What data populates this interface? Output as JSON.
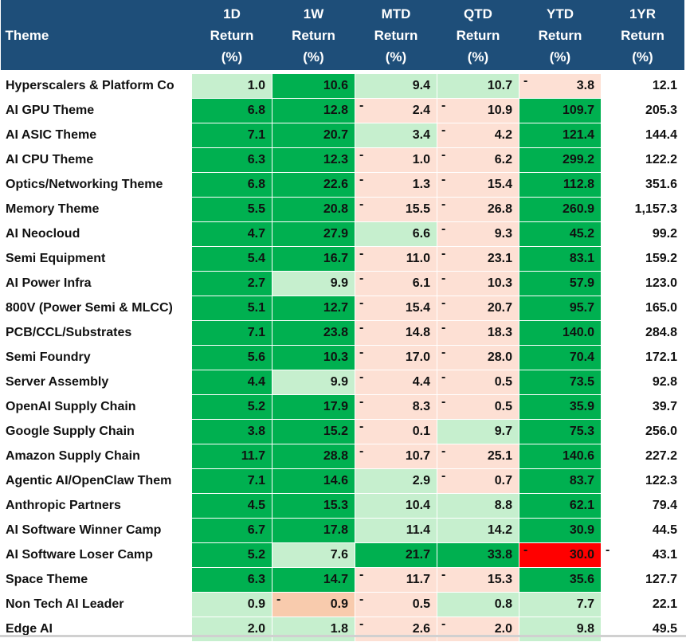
{
  "header": {
    "theme": "Theme",
    "columns": [
      [
        "1D",
        "Return",
        "(%)"
      ],
      [
        "1W",
        "Return",
        "(%)"
      ],
      [
        "MTD",
        "Return",
        "(%)"
      ],
      [
        "QTD",
        "Return",
        "(%)"
      ],
      [
        "YTD",
        "Return",
        "(%)"
      ],
      [
        "1YR",
        "Return",
        "(%)"
      ]
    ]
  },
  "rows": [
    {
      "name": "Hyperscalers & Platform Co",
      "cells": [
        {
          "v": "1.0",
          "c": "lg"
        },
        {
          "v": "10.6",
          "c": "dg"
        },
        {
          "v": "9.4",
          "c": "lg"
        },
        {
          "v": "10.7",
          "c": "lg"
        },
        {
          "v": "3.8",
          "c": "pk",
          "neg": true
        },
        {
          "v": "12.1",
          "c": "wh"
        }
      ]
    },
    {
      "name": "AI GPU Theme",
      "cells": [
        {
          "v": "6.8",
          "c": "dg"
        },
        {
          "v": "12.8",
          "c": "dg"
        },
        {
          "v": "2.4",
          "c": "pk",
          "neg": true
        },
        {
          "v": "10.9",
          "c": "pk",
          "neg": true
        },
        {
          "v": "109.7",
          "c": "dg"
        },
        {
          "v": "205.3",
          "c": "wh"
        }
      ]
    },
    {
      "name": "AI ASIC Theme",
      "cells": [
        {
          "v": "7.1",
          "c": "dg"
        },
        {
          "v": "20.7",
          "c": "dg"
        },
        {
          "v": "3.4",
          "c": "lg"
        },
        {
          "v": "4.2",
          "c": "pk",
          "neg": true
        },
        {
          "v": "121.4",
          "c": "dg"
        },
        {
          "v": "144.4",
          "c": "wh"
        }
      ]
    },
    {
      "name": "AI CPU Theme",
      "cells": [
        {
          "v": "6.3",
          "c": "dg"
        },
        {
          "v": "12.3",
          "c": "dg"
        },
        {
          "v": "1.0",
          "c": "pk",
          "neg": true
        },
        {
          "v": "6.2",
          "c": "pk",
          "neg": true
        },
        {
          "v": "299.2",
          "c": "dg"
        },
        {
          "v": "122.2",
          "c": "wh"
        }
      ]
    },
    {
      "name": "Optics/Networking Theme",
      "cells": [
        {
          "v": "6.8",
          "c": "dg"
        },
        {
          "v": "22.6",
          "c": "dg"
        },
        {
          "v": "1.3",
          "c": "pk",
          "neg": true
        },
        {
          "v": "15.4",
          "c": "pk",
          "neg": true
        },
        {
          "v": "112.8",
          "c": "dg"
        },
        {
          "v": "351.6",
          "c": "wh"
        }
      ]
    },
    {
      "name": "Memory Theme",
      "cells": [
        {
          "v": "5.5",
          "c": "dg"
        },
        {
          "v": "20.8",
          "c": "dg"
        },
        {
          "v": "15.5",
          "c": "pk",
          "neg": true
        },
        {
          "v": "26.8",
          "c": "pk",
          "neg": true
        },
        {
          "v": "260.9",
          "c": "dg"
        },
        {
          "v": "1,157.3",
          "c": "wh"
        }
      ]
    },
    {
      "name": "AI Neocloud",
      "cells": [
        {
          "v": "4.7",
          "c": "dg"
        },
        {
          "v": "27.9",
          "c": "dg"
        },
        {
          "v": "6.6",
          "c": "lg"
        },
        {
          "v": "9.3",
          "c": "pk",
          "neg": true
        },
        {
          "v": "45.2",
          "c": "dg"
        },
        {
          "v": "99.2",
          "c": "wh"
        }
      ]
    },
    {
      "name": "Semi Equipment",
      "cells": [
        {
          "v": "5.4",
          "c": "dg"
        },
        {
          "v": "16.7",
          "c": "dg"
        },
        {
          "v": "11.0",
          "c": "pk",
          "neg": true
        },
        {
          "v": "23.1",
          "c": "pk",
          "neg": true
        },
        {
          "v": "83.1",
          "c": "dg"
        },
        {
          "v": "159.2",
          "c": "wh"
        }
      ]
    },
    {
      "name": "AI Power Infra",
      "cells": [
        {
          "v": "2.7",
          "c": "dg"
        },
        {
          "v": "9.9",
          "c": "lg"
        },
        {
          "v": "6.1",
          "c": "pk",
          "neg": true
        },
        {
          "v": "10.3",
          "c": "pk",
          "neg": true
        },
        {
          "v": "57.9",
          "c": "dg"
        },
        {
          "v": "123.0",
          "c": "wh"
        }
      ]
    },
    {
      "name": "800V (Power Semi & MLCC)",
      "cells": [
        {
          "v": "5.1",
          "c": "dg"
        },
        {
          "v": "12.7",
          "c": "dg"
        },
        {
          "v": "15.4",
          "c": "pk",
          "neg": true
        },
        {
          "v": "20.7",
          "c": "pk",
          "neg": true
        },
        {
          "v": "95.7",
          "c": "dg"
        },
        {
          "v": "165.0",
          "c": "wh"
        }
      ]
    },
    {
      "name": "PCB/CCL/Substrates",
      "cells": [
        {
          "v": "7.1",
          "c": "dg"
        },
        {
          "v": "23.8",
          "c": "dg"
        },
        {
          "v": "14.8",
          "c": "pk",
          "neg": true
        },
        {
          "v": "18.3",
          "c": "pk",
          "neg": true
        },
        {
          "v": "140.0",
          "c": "dg"
        },
        {
          "v": "284.8",
          "c": "wh"
        }
      ]
    },
    {
      "name": "Semi Foundry",
      "cells": [
        {
          "v": "5.6",
          "c": "dg"
        },
        {
          "v": "10.3",
          "c": "dg"
        },
        {
          "v": "17.0",
          "c": "pk",
          "neg": true
        },
        {
          "v": "28.0",
          "c": "pk",
          "neg": true
        },
        {
          "v": "70.4",
          "c": "dg"
        },
        {
          "v": "172.1",
          "c": "wh"
        }
      ]
    },
    {
      "name": "Server Assembly",
      "cells": [
        {
          "v": "4.4",
          "c": "dg"
        },
        {
          "v": "9.9",
          "c": "lg"
        },
        {
          "v": "4.4",
          "c": "pk",
          "neg": true
        },
        {
          "v": "0.5",
          "c": "pk",
          "neg": true
        },
        {
          "v": "73.5",
          "c": "dg"
        },
        {
          "v": "92.8",
          "c": "wh"
        }
      ]
    },
    {
      "name": "OpenAI Supply Chain",
      "cells": [
        {
          "v": "5.2",
          "c": "dg"
        },
        {
          "v": "17.9",
          "c": "dg"
        },
        {
          "v": "8.3",
          "c": "pk",
          "neg": true
        },
        {
          "v": "0.5",
          "c": "pk",
          "neg": true
        },
        {
          "v": "35.9",
          "c": "dg"
        },
        {
          "v": "39.7",
          "c": "wh"
        }
      ]
    },
    {
      "name": "Google Supply Chain",
      "cells": [
        {
          "v": "3.8",
          "c": "dg"
        },
        {
          "v": "15.2",
          "c": "dg"
        },
        {
          "v": "0.1",
          "c": "pk",
          "neg": true
        },
        {
          "v": "9.7",
          "c": "lg"
        },
        {
          "v": "75.3",
          "c": "dg"
        },
        {
          "v": "256.0",
          "c": "wh"
        }
      ]
    },
    {
      "name": "Amazon Supply Chain",
      "cells": [
        {
          "v": "11.7",
          "c": "dg"
        },
        {
          "v": "28.8",
          "c": "dg"
        },
        {
          "v": "10.7",
          "c": "pk",
          "neg": true
        },
        {
          "v": "25.1",
          "c": "pk",
          "neg": true
        },
        {
          "v": "140.6",
          "c": "dg"
        },
        {
          "v": "227.2",
          "c": "wh"
        }
      ]
    },
    {
      "name": "Agentic AI/OpenClaw Them",
      "cells": [
        {
          "v": "7.1",
          "c": "dg"
        },
        {
          "v": "14.6",
          "c": "dg"
        },
        {
          "v": "2.9",
          "c": "lg"
        },
        {
          "v": "0.7",
          "c": "pk",
          "neg": true
        },
        {
          "v": "83.7",
          "c": "dg"
        },
        {
          "v": "122.3",
          "c": "wh"
        }
      ]
    },
    {
      "name": "Anthropic Partners",
      "cells": [
        {
          "v": "4.5",
          "c": "dg"
        },
        {
          "v": "15.3",
          "c": "dg"
        },
        {
          "v": "10.4",
          "c": "lg"
        },
        {
          "v": "8.8",
          "c": "lg"
        },
        {
          "v": "62.1",
          "c": "dg"
        },
        {
          "v": "79.4",
          "c": "wh"
        }
      ]
    },
    {
      "name": "AI Software Winner Camp",
      "cells": [
        {
          "v": "6.7",
          "c": "dg"
        },
        {
          "v": "17.8",
          "c": "dg"
        },
        {
          "v": "11.4",
          "c": "lg"
        },
        {
          "v": "14.2",
          "c": "lg"
        },
        {
          "v": "30.9",
          "c": "dg"
        },
        {
          "v": "44.5",
          "c": "wh"
        }
      ]
    },
    {
      "name": "AI Software Loser Camp",
      "cells": [
        {
          "v": "5.2",
          "c": "dg"
        },
        {
          "v": "7.6",
          "c": "lg"
        },
        {
          "v": "21.7",
          "c": "dg"
        },
        {
          "v": "33.8",
          "c": "dg"
        },
        {
          "v": "30.0",
          "c": "rd",
          "neg": true
        },
        {
          "v": "43.1",
          "c": "wh",
          "neg": true
        }
      ]
    },
    {
      "name": "Space Theme",
      "cells": [
        {
          "v": "6.3",
          "c": "dg"
        },
        {
          "v": "14.7",
          "c": "dg"
        },
        {
          "v": "11.7",
          "c": "pk",
          "neg": true
        },
        {
          "v": "15.3",
          "c": "pk",
          "neg": true
        },
        {
          "v": "35.6",
          "c": "dg"
        },
        {
          "v": "127.7",
          "c": "wh"
        }
      ]
    },
    {
      "name": "Non Tech AI Leader",
      "cells": [
        {
          "v": "0.9",
          "c": "lg"
        },
        {
          "v": "0.9",
          "c": "pk2",
          "neg": true
        },
        {
          "v": "0.5",
          "c": "pk",
          "neg": true
        },
        {
          "v": "0.8",
          "c": "lg"
        },
        {
          "v": "7.7",
          "c": "lg"
        },
        {
          "v": "22.1",
          "c": "wh"
        }
      ]
    },
    {
      "name": "Edge AI",
      "cells": [
        {
          "v": "2.0",
          "c": "lg"
        },
        {
          "v": "1.8",
          "c": "lg"
        },
        {
          "v": "2.6",
          "c": "pk",
          "neg": true
        },
        {
          "v": "2.0",
          "c": "pk",
          "neg": true
        },
        {
          "v": "9.8",
          "c": "lg"
        },
        {
          "v": "49.5",
          "c": "wh"
        }
      ]
    }
  ],
  "colors": {
    "header_bg": "#1e4e79",
    "dark_green": "#00b050",
    "light_green": "#c6efce",
    "light_pink": "#fde0d4",
    "salmon": "#f8cbad",
    "red": "#ff0000"
  },
  "negative_marker": "-"
}
